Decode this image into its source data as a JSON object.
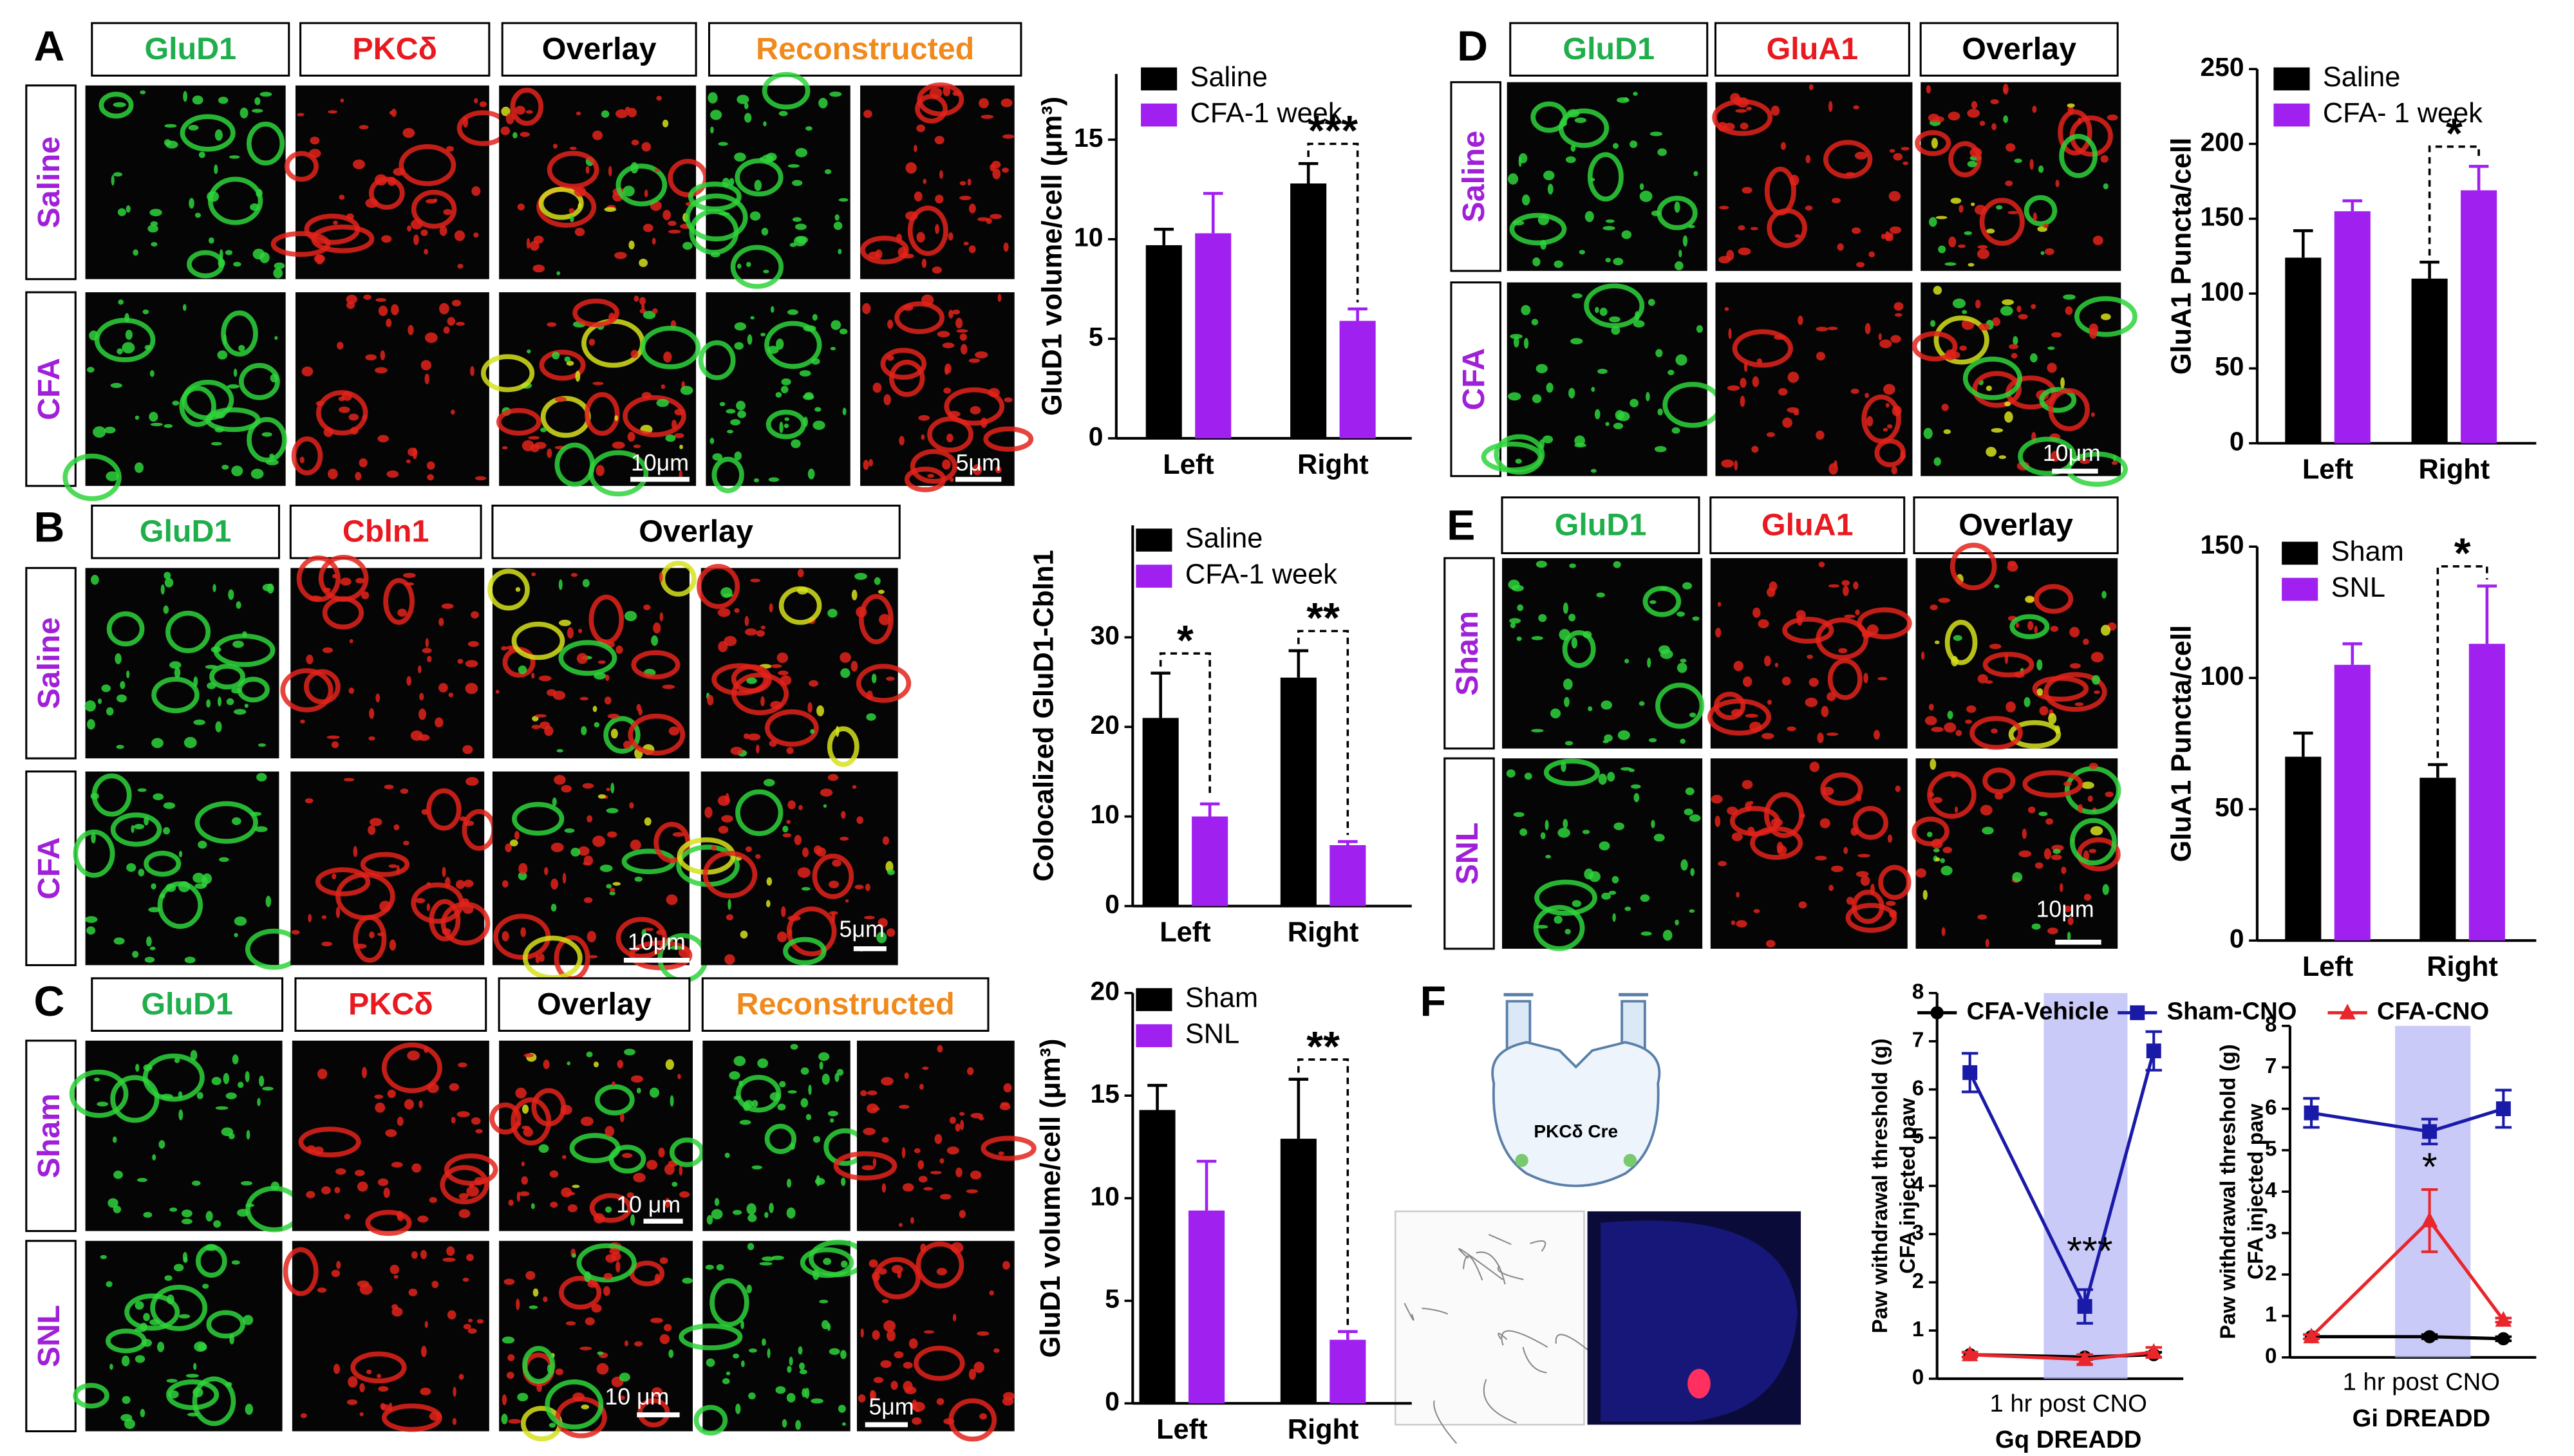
{
  "image_panels": [
    {
      "letter": "A",
      "columns": [
        {
          "text": "GluD1",
          "color": "#1fae4b"
        },
        {
          "text": "PKCδ",
          "color": "#e8191f"
        },
        {
          "text": "Overlay",
          "color": "#000000"
        },
        {
          "text": "Reconstructed",
          "color": "#f08a1c"
        }
      ],
      "rows": [
        {
          "text": "Saline",
          "color": "#a020d8"
        },
        {
          "text": "CFA",
          "color": "#a020d8"
        }
      ],
      "scale_bars": [
        "10μm",
        "5μm"
      ]
    },
    {
      "letter": "B",
      "columns": [
        {
          "text": "GluD1",
          "color": "#1fae4b"
        },
        {
          "text": "Cbln1",
          "color": "#e8191f"
        },
        {
          "text": "Overlay",
          "color": "#000000"
        }
      ],
      "rows": [
        {
          "text": "Saline",
          "color": "#a020d8"
        },
        {
          "text": "CFA",
          "color": "#a020d8"
        }
      ],
      "scale_bars": [
        "10μm",
        "5μm"
      ]
    },
    {
      "letter": "C",
      "columns": [
        {
          "text": "GluD1",
          "color": "#1fae4b"
        },
        {
          "text": "PKCδ",
          "color": "#e8191f"
        },
        {
          "text": "Overlay",
          "color": "#000000"
        },
        {
          "text": "Reconstructed",
          "color": "#f08a1c"
        }
      ],
      "rows": [
        {
          "text": "Sham",
          "color": "#a020d8"
        },
        {
          "text": "SNL",
          "color": "#a020d8"
        }
      ],
      "scale_bars": [
        "10 μm",
        "10 μm",
        "5μm"
      ]
    },
    {
      "letter": "D",
      "columns": [
        {
          "text": "GluD1",
          "color": "#1fae4b"
        },
        {
          "text": "GluA1",
          "color": "#e8191f"
        },
        {
          "text": "Overlay",
          "color": "#000000"
        }
      ],
      "rows": [
        {
          "text": "Saline",
          "color": "#a020d8"
        },
        {
          "text": "CFA",
          "color": "#a020d8"
        }
      ],
      "scale_bars": [
        "10μm"
      ]
    },
    {
      "letter": "E",
      "columns": [
        {
          "text": "GluD1",
          "color": "#1fae4b"
        },
        {
          "text": "GluA1",
          "color": "#e8191f"
        },
        {
          "text": "Overlay",
          "color": "#000000"
        }
      ],
      "rows": [
        {
          "text": "Sham",
          "color": "#a020d8"
        },
        {
          "text": "SNL",
          "color": "#a020d8"
        }
      ],
      "scale_bars": [
        "10μm"
      ]
    },
    {
      "letter": "F",
      "diagram_label": "PKCδ Cre"
    }
  ],
  "chart_data": [
    {
      "type": "bar",
      "ylabel": "GluD1 volume/cell (μm³)",
      "categories": [
        "Left",
        "Right"
      ],
      "ylim": [
        0,
        18.3
      ],
      "yticks": [
        0,
        5,
        10,
        15
      ],
      "annotations": [
        null,
        "***"
      ],
      "series": [
        {
          "name": "Saline",
          "color": "#000000",
          "values": [
            9.7,
            12.8
          ],
          "errors": [
            0.8,
            1.0
          ]
        },
        {
          "name": "CFA-1 week",
          "color": "#a020f0",
          "values": [
            10.3,
            5.9
          ],
          "errors": [
            2.0,
            0.6
          ]
        }
      ]
    },
    {
      "type": "bar",
      "ylabel": "Colocalized GluD1-Cbln1",
      "categories": [
        "Left",
        "Right"
      ],
      "ylim": [
        0,
        42.5
      ],
      "yticks": [
        0,
        10,
        20,
        30
      ],
      "annotations": [
        "*",
        "**"
      ],
      "series": [
        {
          "name": "Saline",
          "color": "#000000",
          "values": [
            21,
            25.5
          ],
          "errors": [
            5,
            3
          ]
        },
        {
          "name": "CFA-1 week",
          "color": "#a020f0",
          "values": [
            10,
            6.8
          ],
          "errors": [
            1.4,
            0.4
          ]
        }
      ]
    },
    {
      "type": "bar",
      "ylabel": "GluD1 volume/cell (μm³)",
      "categories": [
        "Left",
        "Right"
      ],
      "ylim": [
        0,
        20
      ],
      "yticks": [
        0,
        5,
        10,
        15,
        20
      ],
      "annotations": [
        null,
        "**"
      ],
      "series": [
        {
          "name": "Sham",
          "color": "#000000",
          "values": [
            14.3,
            12.9
          ],
          "errors": [
            1.2,
            2.9
          ]
        },
        {
          "name": "SNL",
          "color": "#a020f0",
          "values": [
            9.4,
            3.1
          ],
          "errors": [
            2.4,
            0.4
          ]
        }
      ]
    },
    {
      "type": "bar",
      "ylabel": "GluA1 Puncta/cell",
      "categories": [
        "Left",
        "Right"
      ],
      "ylim": [
        0,
        250
      ],
      "yticks": [
        0,
        50,
        100,
        150,
        200,
        250
      ],
      "annotations": [
        null,
        "*"
      ],
      "series": [
        {
          "name": "Saline",
          "color": "#000000",
          "values": [
            124,
            110
          ],
          "errors": [
            18,
            11
          ]
        },
        {
          "name": "CFA- 1 week",
          "color": "#a020f0",
          "values": [
            155,
            169
          ],
          "errors": [
            7,
            16
          ]
        }
      ]
    },
    {
      "type": "bar",
      "ylabel": "GluA1 Puncta/cell",
      "categories": [
        "Left",
        "Right"
      ],
      "ylim": [
        0,
        150
      ],
      "yticks": [
        0,
        50,
        100,
        150
      ],
      "annotations": [
        null,
        "*"
      ],
      "series": [
        {
          "name": "Sham",
          "color": "#000000",
          "values": [
            70,
            62
          ],
          "errors": [
            9,
            5
          ]
        },
        {
          "name": "SNL",
          "color": "#a020f0",
          "values": [
            105,
            113
          ],
          "errors": [
            8,
            22
          ]
        }
      ]
    },
    {
      "type": "line",
      "ylabel": [
        "Paw withdrawal threshold (g)",
        "CFA injected paw"
      ],
      "xlabel": "1 hr post CNO",
      "title": "Gq DREADD",
      "annotation": "***",
      "categories": [
        null,
        null,
        null
      ],
      "ylim": [
        0,
        8
      ],
      "yticks": [
        0,
        1,
        2,
        3,
        4,
        5,
        6,
        7,
        8
      ],
      "series": [
        {
          "name": "CFA-Vehicle",
          "color": "#000000",
          "marker": "circle",
          "values": [
            0.5,
            0.45,
            0.5
          ],
          "errors": [
            0.05,
            0.05,
            0.05
          ]
        },
        {
          "name": "Sham-CNO",
          "color": "#1a1aa8",
          "marker": "square",
          "values": [
            6.35,
            1.5,
            6.8
          ],
          "errors": [
            0.4,
            0.35,
            0.4
          ]
        },
        {
          "name": "CFA-CNO",
          "color": "#e8262b",
          "marker": "triangle",
          "values": [
            0.5,
            0.4,
            0.55
          ],
          "errors": [
            0.05,
            0.1,
            0.1
          ]
        }
      ]
    },
    {
      "type": "line",
      "ylabel": [
        "Paw withdrawal threshold (g)",
        "CFA injected paw"
      ],
      "xlabel": "1 hr post CNO",
      "title": "Gi DREADD",
      "annotation": "*",
      "categories": [
        null,
        null,
        null
      ],
      "ylim": [
        0,
        8
      ],
      "yticks": [
        0,
        1,
        2,
        3,
        4,
        5,
        6,
        7,
        8
      ],
      "series": [
        {
          "color": "#000000",
          "marker": "circle",
          "values": [
            0.5,
            0.5,
            0.45
          ],
          "errors": [
            0.05,
            0.05,
            0.05
          ]
        },
        {
          "color": "#1a1aa8",
          "marker": "square",
          "values": [
            5.9,
            5.45,
            6.0
          ],
          "errors": [
            0.35,
            0.3,
            0.45
          ]
        },
        {
          "color": "#e8262b",
          "marker": "triangle",
          "values": [
            0.5,
            3.3,
            0.9
          ],
          "errors": [
            0.05,
            0.75,
            0.05
          ]
        }
      ]
    }
  ]
}
